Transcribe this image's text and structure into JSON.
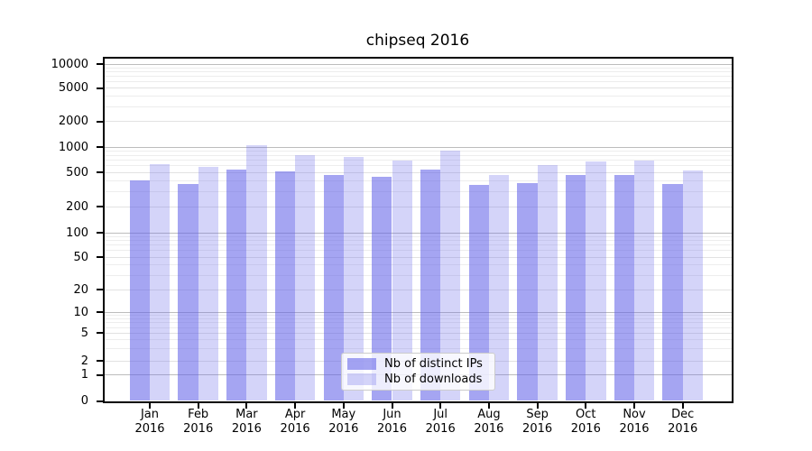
{
  "figure": {
    "title": "chipseq 2016"
  },
  "chart_data": {
    "type": "bar",
    "title": "chipseq 2016",
    "yscale": "symlog",
    "grid": true,
    "legend_position": "lower center",
    "xlabel": "",
    "ylabel": "",
    "categories": [
      "Jan 2016",
      "Feb 2016",
      "Mar 2016",
      "Apr 2016",
      "May 2016",
      "Jun 2016",
      "Jul 2016",
      "Aug 2016",
      "Sep 2016",
      "Oct 2016",
      "Nov 2016",
      "Dec 2016"
    ],
    "series": [
      {
        "name": "Nb of distinct IPs",
        "color": "#6161e8",
        "alpha": 0.57,
        "values": [
          410,
          370,
          540,
          520,
          470,
          445,
          540,
          360,
          380,
          470,
          465,
          370
        ]
      },
      {
        "name": "Nb of downloads",
        "color": "#6161e8",
        "alpha": 0.27,
        "values": [
          635,
          585,
          1055,
          795,
          770,
          690,
          910,
          475,
          615,
          680,
          690,
          530
        ]
      }
    ],
    "yticks": [
      0,
      1,
      2,
      5,
      10,
      20,
      50,
      100,
      200,
      500,
      1000,
      2000,
      5000,
      10000
    ],
    "ylim": [
      0,
      12500
    ]
  }
}
